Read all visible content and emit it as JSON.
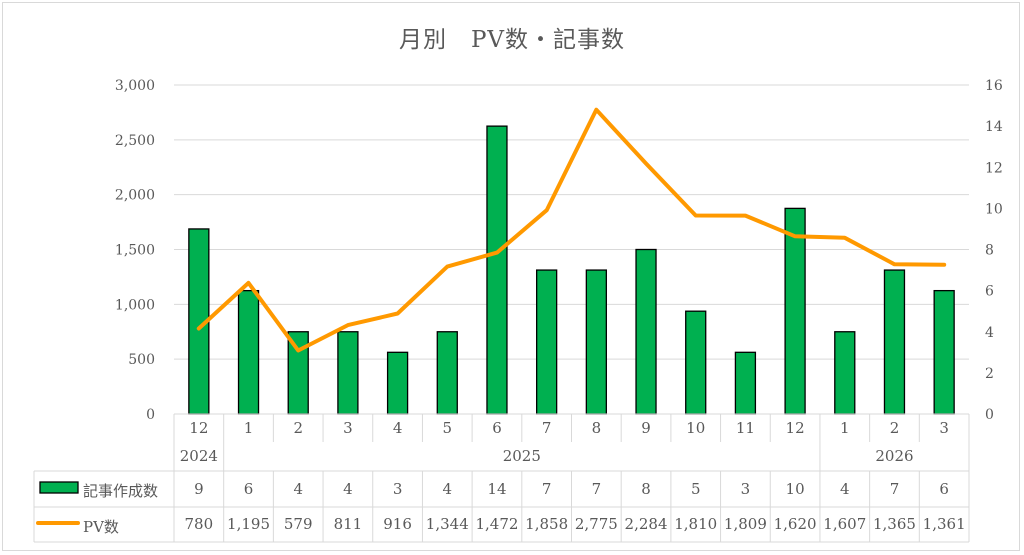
{
  "chart_data": {
    "type": "bar+line",
    "title": "月別　PV数・記事数",
    "categories": [
      "12",
      "1",
      "2",
      "3",
      "4",
      "5",
      "6",
      "7",
      "8",
      "9",
      "10",
      "11",
      "12",
      "1",
      "2",
      "3"
    ],
    "year_groups": [
      {
        "label": "2024",
        "start": 0,
        "count": 1
      },
      {
        "label": "2025",
        "start": 1,
        "count": 12
      },
      {
        "label": "2026",
        "start": 13,
        "count": 3
      }
    ],
    "series": [
      {
        "name": "記事作成数",
        "type": "bar",
        "axis": "right",
        "color": "#00B050",
        "border": "#000000",
        "values": [
          9,
          6,
          4,
          4,
          3,
          4,
          14,
          7,
          7,
          8,
          5,
          3,
          10,
          4,
          7,
          6
        ],
        "labels": [
          "9",
          "6",
          "4",
          "4",
          "3",
          "4",
          "14",
          "7",
          "7",
          "8",
          "5",
          "3",
          "10",
          "4",
          "7",
          "6"
        ]
      },
      {
        "name": "PV数",
        "type": "line",
        "axis": "left",
        "color": "#FF9900",
        "values": [
          780,
          1195,
          579,
          811,
          916,
          1344,
          1472,
          1858,
          2775,
          2284,
          1810,
          1809,
          1620,
          1607,
          1365,
          1361
        ],
        "labels": [
          "780",
          "1,195",
          "579",
          "811",
          "916",
          "1,344",
          "1,472",
          "1,858",
          "2,775",
          "2,284",
          "1,810",
          "1,809",
          "1,620",
          "1,607",
          "1,365",
          "1,361"
        ]
      }
    ],
    "left_axis": {
      "min": 0,
      "max": 3000,
      "ticks": [
        "0",
        "500",
        "1,000",
        "1,500",
        "2,000",
        "2,500",
        "3,000"
      ]
    },
    "right_axis": {
      "min": 0,
      "max": 16,
      "ticks": [
        "0",
        "2",
        "4",
        "6",
        "8",
        "10",
        "12",
        "14",
        "16"
      ]
    },
    "grid": true,
    "legend_position": "data-table",
    "xlabel": "",
    "ylabel": ""
  }
}
